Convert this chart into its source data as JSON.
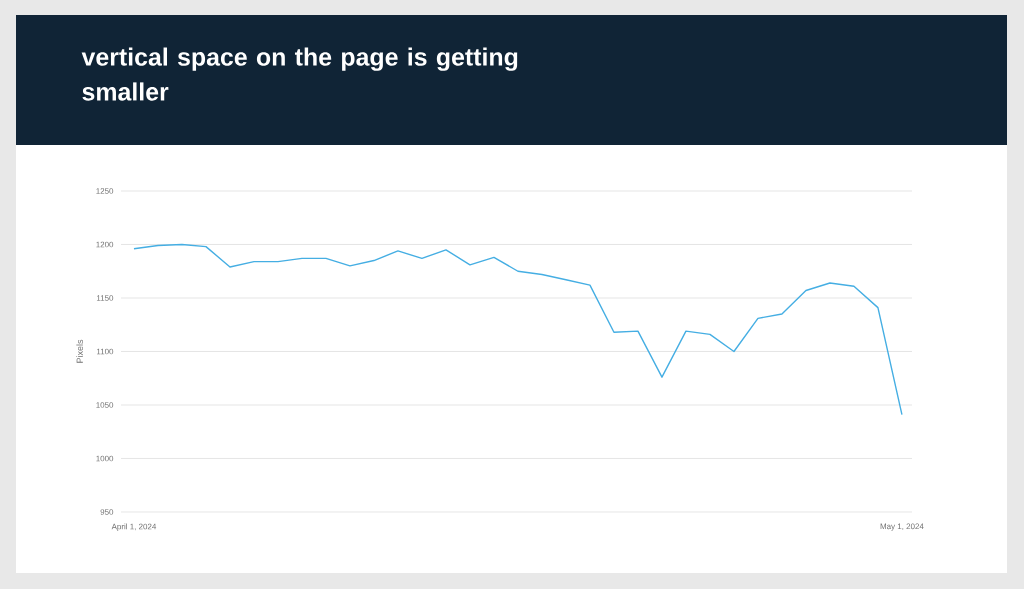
{
  "chart_data": {
    "type": "line",
    "title": "vertical space on the page is getting smaller",
    "ylabel": "Pixels",
    "categories": [
      "April 1, 2024",
      null,
      null,
      null,
      null,
      null,
      null,
      null,
      null,
      null,
      null,
      null,
      null,
      null,
      null,
      null,
      null,
      null,
      null,
      null,
      null,
      null,
      null,
      null,
      null,
      null,
      null,
      null,
      null,
      null,
      null,
      null,
      "May 1, 2024"
    ],
    "series": [
      {
        "color": "#45aee3",
        "values": [
          1196,
          1199,
          1200,
          1198,
          1179,
          1184,
          1184,
          1187,
          1187,
          1180,
          1185,
          1194,
          1187,
          1195,
          1181,
          1188,
          1175,
          1172,
          1167,
          1162,
          1118,
          1119,
          1076,
          1119,
          1116,
          1100,
          1131,
          1135,
          1157,
          1164,
          1161,
          1141,
          1041
        ]
      }
    ],
    "ylim": [
      950,
      1250
    ],
    "yticks": [
      950,
      1000,
      1050,
      1100,
      1150,
      1200,
      1250
    ],
    "grid": "y",
    "marker": "none",
    "line_style": "solid"
  }
}
